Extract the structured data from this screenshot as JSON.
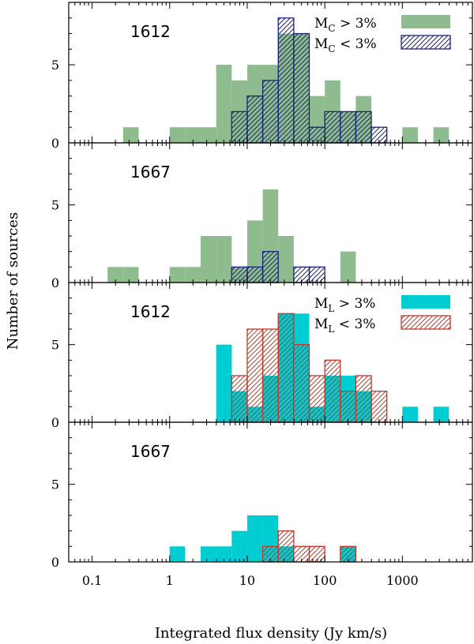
{
  "chart_data": {
    "type": "histogram",
    "ylabel": "Number of sources",
    "xlabel": "Integrated flux density (Jy km/s)",
    "xscale": "log",
    "xlim": [
      0.05,
      8000
    ],
    "ylim": [
      0,
      9
    ],
    "bin_width_dex": 0.2,
    "x_ticks": [
      {
        "value": 0.1,
        "label": "0.1"
      },
      {
        "value": 1,
        "label": "1"
      },
      {
        "value": 10,
        "label": "10"
      },
      {
        "value": 100,
        "label": "100"
      },
      {
        "value": 1000,
        "label": "1000"
      }
    ],
    "y_ticks": [
      {
        "value": 0,
        "label": "0"
      },
      {
        "value": 5,
        "label": "5"
      }
    ],
    "colors": {
      "mc_high": "#8fbc8f",
      "mc_low": "#1a237e",
      "ml_high": "#00cdd1",
      "ml_low": "#c0392b"
    },
    "panels": [
      {
        "label": "1612",
        "legend": [
          {
            "name": "M",
            "sub": "C",
            "rel": " > 3%",
            "style": "filled",
            "color_key": "mc_high"
          },
          {
            "name": "M",
            "sub": "C",
            "rel": " < 3%",
            "style": "hatched",
            "color_key": "mc_low"
          }
        ],
        "series": [
          {
            "name": "MC > 3%",
            "style": "filled",
            "color_key": "mc_high",
            "bins": [
              [
                -0.6,
                1
              ],
              [
                0,
                1
              ],
              [
                0.2,
                1
              ],
              [
                0.4,
                1
              ],
              [
                0.6,
                5
              ],
              [
                0.8,
                4
              ],
              [
                1.0,
                5
              ],
              [
                1.2,
                5
              ],
              [
                1.4,
                7
              ],
              [
                1.6,
                7
              ],
              [
                1.8,
                3
              ],
              [
                2.0,
                4
              ],
              [
                2.2,
                2
              ],
              [
                2.4,
                3
              ],
              [
                3.0,
                1
              ],
              [
                3.4,
                1
              ]
            ]
          },
          {
            "name": "MC < 3%",
            "style": "hatched",
            "color_key": "mc_low",
            "bins": [
              [
                0.8,
                2
              ],
              [
                1.0,
                3
              ],
              [
                1.2,
                4
              ],
              [
                1.4,
                8
              ],
              [
                1.6,
                7
              ],
              [
                1.8,
                1
              ],
              [
                2.0,
                2
              ],
              [
                2.2,
                2
              ],
              [
                2.4,
                2
              ],
              [
                2.6,
                1
              ]
            ]
          }
        ]
      },
      {
        "label": "1667",
        "legend": [],
        "series": [
          {
            "name": "MC > 3%",
            "style": "filled",
            "color_key": "mc_high",
            "bins": [
              [
                -0.8,
                1
              ],
              [
                -0.6,
                1
              ],
              [
                0,
                1
              ],
              [
                0.2,
                1
              ],
              [
                0.4,
                3
              ],
              [
                0.6,
                3
              ],
              [
                0.8,
                1
              ],
              [
                1.0,
                4
              ],
              [
                1.2,
                6
              ],
              [
                1.4,
                3
              ],
              [
                2.2,
                2
              ]
            ]
          },
          {
            "name": "MC < 3%",
            "style": "hatched",
            "color_key": "mc_low",
            "bins": [
              [
                0.8,
                1
              ],
              [
                1.0,
                1
              ],
              [
                1.2,
                2
              ],
              [
                1.6,
                1
              ],
              [
                1.8,
                1
              ]
            ]
          }
        ]
      },
      {
        "label": "1612",
        "legend": [
          {
            "name": "M",
            "sub": "L",
            "rel": " > 3%",
            "style": "filled",
            "color_key": "ml_high"
          },
          {
            "name": "M",
            "sub": "L",
            "rel": " < 3%",
            "style": "hatched",
            "color_key": "ml_low"
          }
        ],
        "series": [
          {
            "name": "ML > 3%",
            "style": "filled",
            "color_key": "ml_high",
            "bins": [
              [
                0.6,
                5
              ],
              [
                0.8,
                2
              ],
              [
                1.0,
                1
              ],
              [
                1.2,
                3
              ],
              [
                1.4,
                7
              ],
              [
                1.6,
                7
              ],
              [
                1.8,
                1
              ],
              [
                2.0,
                3
              ],
              [
                2.2,
                3
              ],
              [
                2.4,
                2
              ],
              [
                3.0,
                1
              ],
              [
                3.4,
                1
              ]
            ]
          },
          {
            "name": "ML < 3%",
            "style": "hatched",
            "color_key": "ml_low",
            "bins": [
              [
                0.8,
                3
              ],
              [
                1.0,
                6
              ],
              [
                1.2,
                6
              ],
              [
                1.4,
                7
              ],
              [
                1.6,
                5
              ],
              [
                1.8,
                3
              ],
              [
                2.0,
                4
              ],
              [
                2.2,
                2
              ],
              [
                2.4,
                3
              ],
              [
                2.6,
                2
              ]
            ]
          }
        ]
      },
      {
        "label": "1667",
        "legend": [],
        "series": [
          {
            "name": "ML > 3%",
            "style": "filled",
            "color_key": "ml_high",
            "bins": [
              [
                0,
                1
              ],
              [
                0.4,
                1
              ],
              [
                0.6,
                1
              ],
              [
                0.8,
                2
              ],
              [
                1.0,
                3
              ],
              [
                1.2,
                3
              ],
              [
                1.4,
                1
              ],
              [
                2.2,
                1
              ]
            ]
          },
          {
            "name": "ML < 3%",
            "style": "hatched",
            "color_key": "ml_low",
            "bins": [
              [
                1.2,
                1
              ],
              [
                1.4,
                2
              ],
              [
                1.6,
                1
              ],
              [
                1.8,
                1
              ],
              [
                2.2,
                1
              ]
            ]
          }
        ]
      }
    ]
  }
}
